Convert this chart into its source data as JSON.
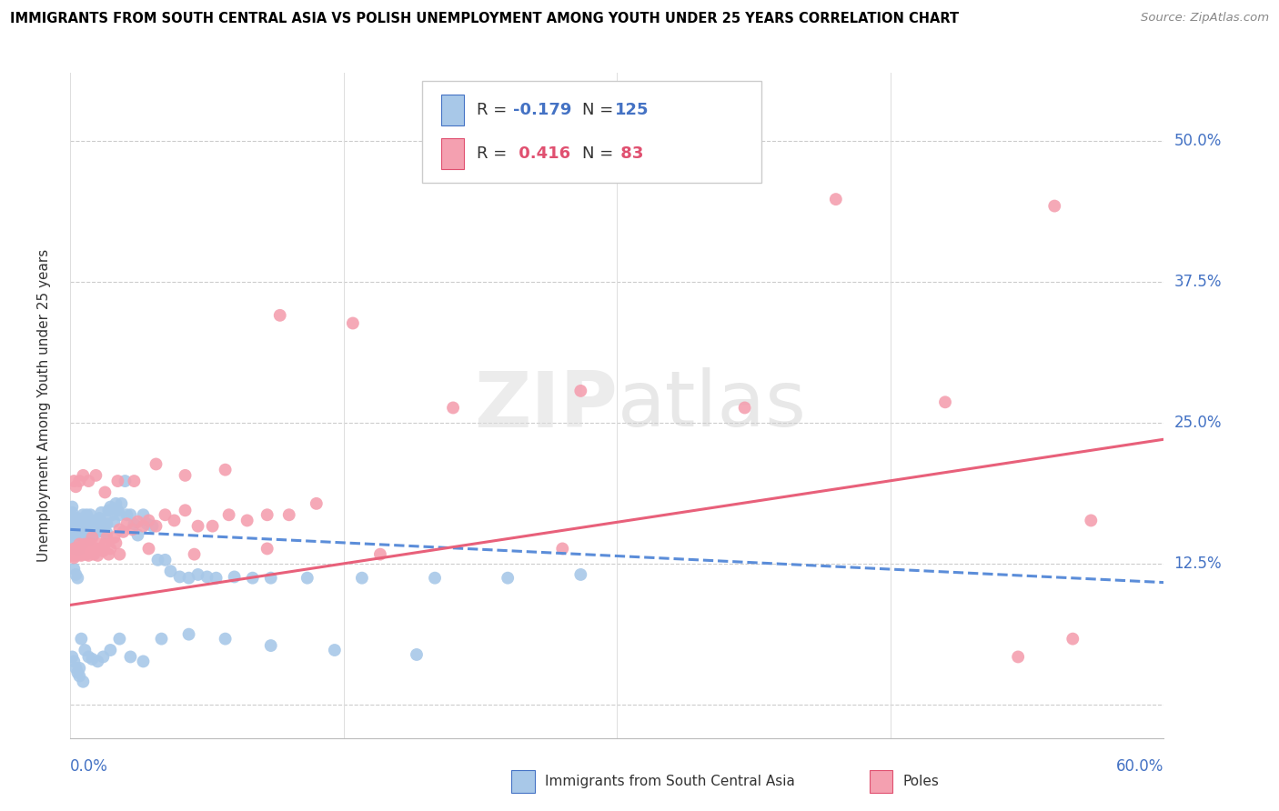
{
  "title": "IMMIGRANTS FROM SOUTH CENTRAL ASIA VS POLISH UNEMPLOYMENT AMONG YOUTH UNDER 25 YEARS CORRELATION CHART",
  "source": "Source: ZipAtlas.com",
  "ylabel": "Unemployment Among Youth under 25 years",
  "color_blue": "#A8C8E8",
  "color_pink": "#F4A0B0",
  "color_blue_line": "#5B8DD9",
  "color_pink_line": "#E8607A",
  "color_blue_text": "#4472C4",
  "color_pink_text": "#E05070",
  "xlim": [
    0.0,
    0.6
  ],
  "ylim": [
    -0.03,
    0.56
  ],
  "ytick_vals": [
    0.0,
    0.125,
    0.25,
    0.375,
    0.5
  ],
  "ytick_labels": [
    "",
    "12.5%",
    "25.0%",
    "37.5%",
    "50.0%"
  ],
  "blue_line_x": [
    0.0,
    0.6
  ],
  "blue_line_y": [
    0.155,
    0.108
  ],
  "pink_line_x": [
    0.0,
    0.6
  ],
  "pink_line_y": [
    0.088,
    0.235
  ],
  "blue_x": [
    0.001,
    0.001,
    0.001,
    0.001,
    0.002,
    0.002,
    0.002,
    0.002,
    0.002,
    0.003,
    0.003,
    0.003,
    0.003,
    0.003,
    0.003,
    0.004,
    0.004,
    0.004,
    0.004,
    0.004,
    0.005,
    0.005,
    0.005,
    0.005,
    0.005,
    0.005,
    0.006,
    0.006,
    0.006,
    0.006,
    0.006,
    0.007,
    0.007,
    0.007,
    0.007,
    0.007,
    0.008,
    0.008,
    0.008,
    0.008,
    0.009,
    0.009,
    0.009,
    0.01,
    0.01,
    0.01,
    0.01,
    0.011,
    0.011,
    0.012,
    0.012,
    0.012,
    0.013,
    0.013,
    0.014,
    0.014,
    0.014,
    0.015,
    0.015,
    0.016,
    0.016,
    0.017,
    0.017,
    0.018,
    0.018,
    0.019,
    0.02,
    0.02,
    0.021,
    0.022,
    0.023,
    0.024,
    0.025,
    0.026,
    0.027,
    0.028,
    0.03,
    0.031,
    0.033,
    0.035,
    0.037,
    0.04,
    0.042,
    0.045,
    0.048,
    0.052,
    0.055,
    0.06,
    0.065,
    0.07,
    0.075,
    0.08,
    0.09,
    0.1,
    0.11,
    0.13,
    0.16,
    0.2,
    0.24,
    0.28,
    0.002,
    0.003,
    0.004,
    0.005,
    0.006,
    0.008,
    0.01,
    0.012,
    0.015,
    0.018,
    0.022,
    0.027,
    0.033,
    0.04,
    0.05,
    0.065,
    0.085,
    0.11,
    0.145,
    0.19,
    0.001,
    0.002,
    0.003,
    0.004,
    0.005,
    0.007
  ],
  "blue_y": [
    0.175,
    0.17,
    0.155,
    0.16,
    0.165,
    0.158,
    0.15,
    0.145,
    0.14,
    0.162,
    0.158,
    0.152,
    0.148,
    0.143,
    0.138,
    0.165,
    0.158,
    0.15,
    0.145,
    0.14,
    0.162,
    0.158,
    0.153,
    0.148,
    0.143,
    0.138,
    0.163,
    0.158,
    0.152,
    0.147,
    0.142,
    0.168,
    0.162,
    0.157,
    0.15,
    0.143,
    0.162,
    0.157,
    0.152,
    0.146,
    0.168,
    0.162,
    0.155,
    0.163,
    0.158,
    0.152,
    0.146,
    0.168,
    0.16,
    0.162,
    0.158,
    0.15,
    0.162,
    0.156,
    0.163,
    0.158,
    0.152,
    0.162,
    0.155,
    0.165,
    0.158,
    0.17,
    0.163,
    0.16,
    0.153,
    0.158,
    0.152,
    0.16,
    0.172,
    0.175,
    0.168,
    0.162,
    0.178,
    0.172,
    0.168,
    0.178,
    0.198,
    0.168,
    0.168,
    0.16,
    0.15,
    0.168,
    0.16,
    0.158,
    0.128,
    0.128,
    0.118,
    0.113,
    0.112,
    0.115,
    0.113,
    0.112,
    0.113,
    0.112,
    0.112,
    0.112,
    0.112,
    0.112,
    0.112,
    0.115,
    0.12,
    0.115,
    0.112,
    0.032,
    0.058,
    0.048,
    0.042,
    0.04,
    0.038,
    0.042,
    0.048,
    0.058,
    0.042,
    0.038,
    0.058,
    0.062,
    0.058,
    0.052,
    0.048,
    0.044,
    0.042,
    0.038,
    0.032,
    0.028,
    0.025,
    0.02
  ],
  "pink_x": [
    0.001,
    0.002,
    0.002,
    0.003,
    0.003,
    0.004,
    0.004,
    0.005,
    0.005,
    0.006,
    0.006,
    0.007,
    0.008,
    0.008,
    0.009,
    0.01,
    0.01,
    0.011,
    0.012,
    0.013,
    0.014,
    0.015,
    0.016,
    0.017,
    0.018,
    0.019,
    0.02,
    0.021,
    0.022,
    0.024,
    0.025,
    0.027,
    0.029,
    0.031,
    0.034,
    0.037,
    0.04,
    0.043,
    0.047,
    0.052,
    0.057,
    0.063,
    0.07,
    0.078,
    0.087,
    0.097,
    0.108,
    0.12,
    0.135,
    0.002,
    0.003,
    0.005,
    0.007,
    0.01,
    0.014,
    0.019,
    0.026,
    0.035,
    0.047,
    0.063,
    0.085,
    0.115,
    0.155,
    0.21,
    0.28,
    0.37,
    0.48,
    0.003,
    0.006,
    0.01,
    0.017,
    0.027,
    0.043,
    0.068,
    0.108,
    0.17,
    0.27,
    0.42,
    0.54,
    0.56,
    0.55,
    0.52
  ],
  "pink_y": [
    0.132,
    0.138,
    0.13,
    0.135,
    0.132,
    0.138,
    0.133,
    0.142,
    0.135,
    0.132,
    0.14,
    0.136,
    0.142,
    0.135,
    0.133,
    0.138,
    0.132,
    0.142,
    0.148,
    0.133,
    0.138,
    0.132,
    0.142,
    0.138,
    0.136,
    0.142,
    0.148,
    0.133,
    0.138,
    0.148,
    0.143,
    0.155,
    0.153,
    0.16,
    0.155,
    0.162,
    0.158,
    0.163,
    0.158,
    0.168,
    0.163,
    0.172,
    0.158,
    0.158,
    0.168,
    0.163,
    0.168,
    0.168,
    0.178,
    0.198,
    0.193,
    0.198,
    0.203,
    0.198,
    0.203,
    0.188,
    0.198,
    0.198,
    0.213,
    0.203,
    0.208,
    0.345,
    0.338,
    0.263,
    0.278,
    0.263,
    0.268,
    0.138,
    0.133,
    0.142,
    0.138,
    0.133,
    0.138,
    0.133,
    0.138,
    0.133,
    0.138,
    0.448,
    0.442,
    0.163,
    0.058,
    0.042
  ]
}
